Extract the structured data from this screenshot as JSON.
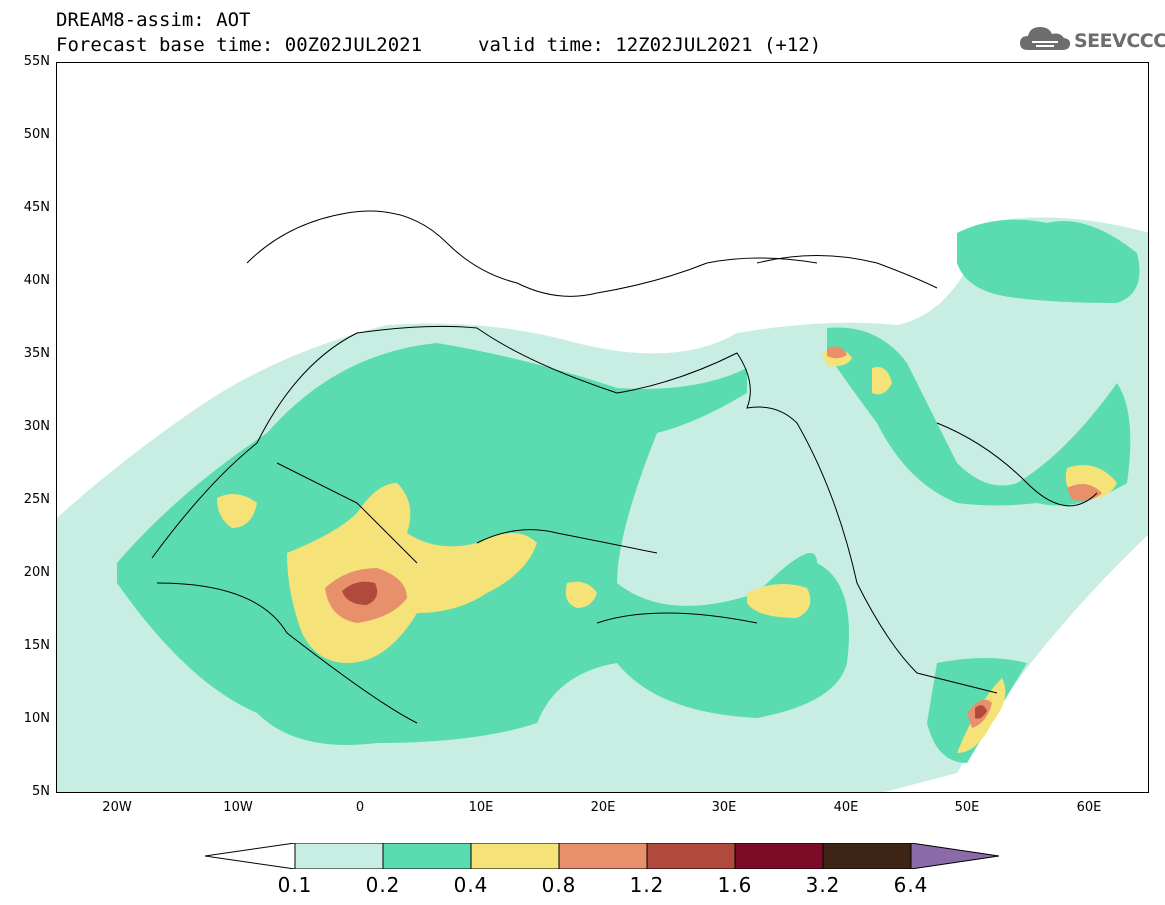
{
  "title": {
    "line1": "DREAM8-assim: AOT",
    "line2": "Forecast base time: 00Z02JUL2021",
    "valid": "valid time: 12Z02JUL2021 (+12)"
  },
  "logo": {
    "text": "SEEVCCC",
    "icon": "cloud-icon"
  },
  "axes": {
    "y_labels": [
      "55N",
      "50N",
      "45N",
      "40N",
      "35N",
      "30N",
      "25N",
      "20N",
      "15N",
      "10N",
      "5N"
    ],
    "x_labels": [
      "20W",
      "10W",
      "0",
      "10E",
      "20E",
      "30E",
      "40E",
      "50E",
      "60E"
    ]
  },
  "colorbar": {
    "labels": [
      "0.1",
      "0.2",
      "0.4",
      "0.8",
      "1.2",
      "1.6",
      "3.2",
      "6.4"
    ],
    "colors": [
      "#ffffff",
      "#c8eee4",
      "#5bdcb0",
      "#f5e37a",
      "#e8906b",
      "#b04a3c",
      "#7d0a26",
      "#3d2415",
      "#8a6aa8"
    ]
  }
}
